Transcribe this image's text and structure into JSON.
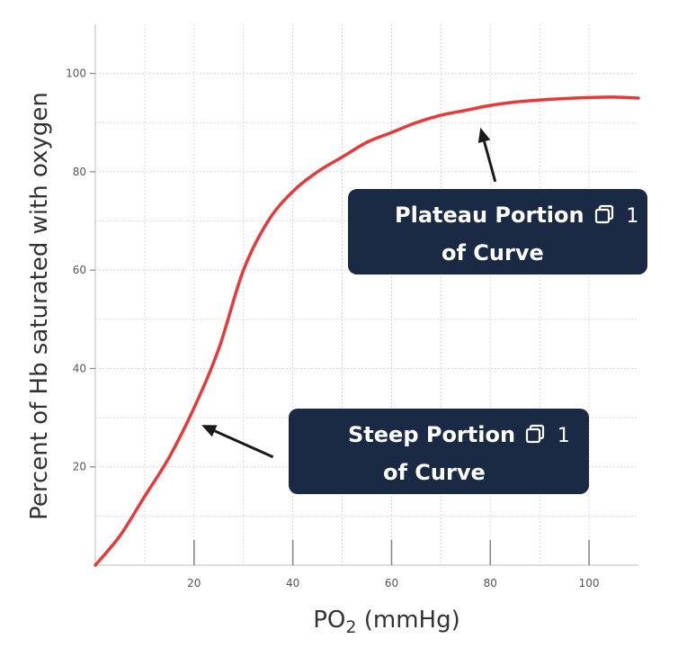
{
  "chart_data": {
    "type": "line",
    "xlabel_base": "PO",
    "xlabel_sub": "2",
    "xlabel_unit": " (mmHg)",
    "ylabel": "Percent of Hb saturated with oxygen",
    "xlim": [
      0,
      110
    ],
    "ylim": [
      0,
      110
    ],
    "grid": true,
    "x_ticks": [
      "20",
      "40",
      "60",
      "80",
      "100"
    ],
    "y_ticks": [
      "20",
      "40",
      "60",
      "80",
      "100"
    ],
    "series": [
      {
        "color": "#e8393a",
        "x": [
          0,
          5,
          10,
          15,
          20,
          25,
          30,
          35,
          40,
          45,
          50,
          55,
          60,
          65,
          70,
          75,
          80,
          85,
          90,
          95,
          100,
          105,
          110
        ],
        "y": [
          0,
          6,
          14,
          22,
          32,
          44,
          60,
          70,
          76,
          80,
          83,
          86,
          88,
          90,
          91.5,
          92.5,
          93.5,
          94.2,
          94.6,
          94.9,
          95.1,
          95.2,
          95
        ]
      }
    ]
  },
  "annotations": [
    {
      "line1": "Plateau Portion",
      "line2": "of Curve",
      "ref": "1",
      "icon": "copy-icon",
      "arrow_from": [
        81,
        78
      ],
      "arrow_to": [
        78,
        89
      ]
    },
    {
      "line1": "Steep Portion",
      "line2": "of Curve",
      "ref": "1",
      "icon": "copy-icon",
      "arrow_from": [
        36,
        22
      ],
      "arrow_to": [
        21.5,
        28.5
      ]
    }
  ]
}
